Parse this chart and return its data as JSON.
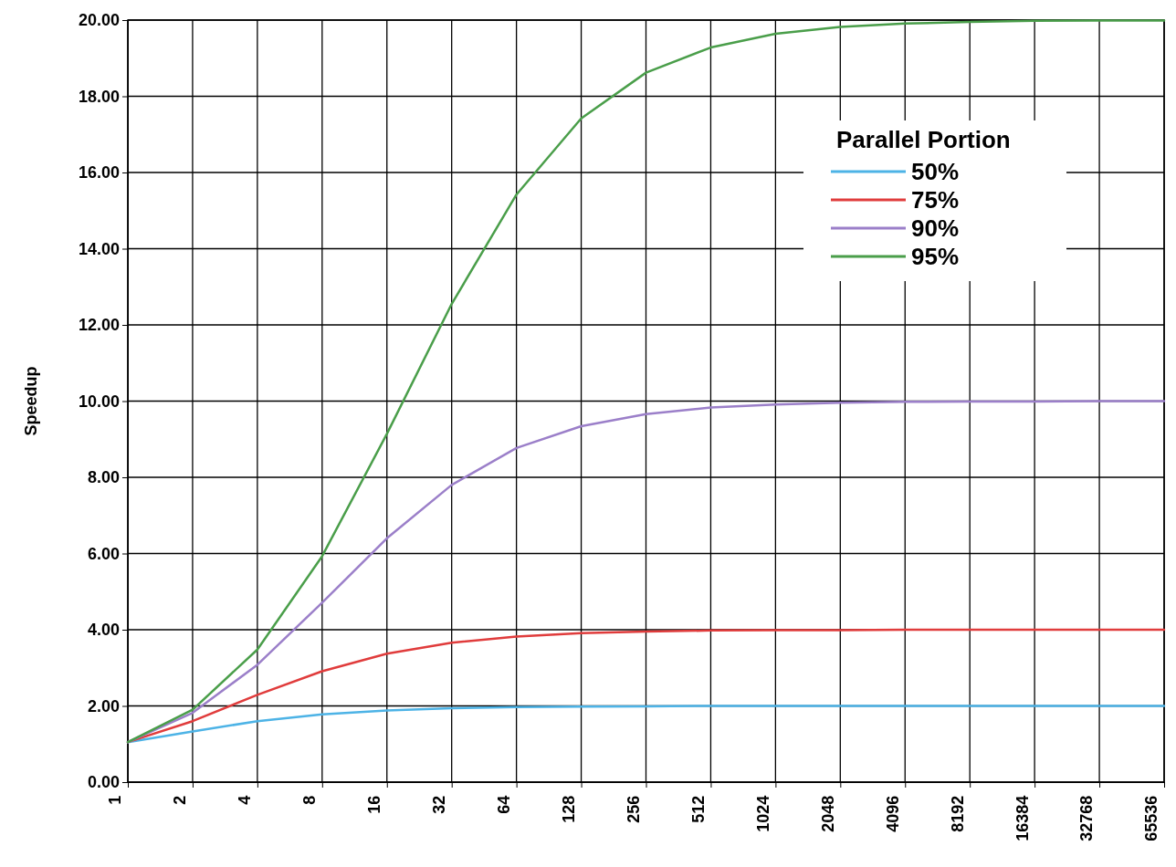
{
  "chart_data": {
    "type": "line",
    "ylabel": "Speedup",
    "legend_title": "Parallel Portion",
    "legend": "top right",
    "grid": true,
    "marker": "none",
    "line_style": "solid",
    "categories": [
      "1",
      "2",
      "4",
      "8",
      "16",
      "32",
      "64",
      "128",
      "256",
      "512",
      "1024",
      "2048",
      "4096",
      "8192",
      "16384",
      "32768",
      "65536"
    ],
    "ylim": [
      0,
      20
    ],
    "yticks": [
      {
        "value": 0,
        "label": "0.00"
      },
      {
        "value": 2,
        "label": "2.00"
      },
      {
        "value": 4,
        "label": "4.00"
      },
      {
        "value": 6,
        "label": "6.00"
      },
      {
        "value": 8,
        "label": "8.00"
      },
      {
        "value": 10,
        "label": "10.00"
      },
      {
        "value": 12,
        "label": "12.00"
      },
      {
        "value": 14,
        "label": "14.00"
      },
      {
        "value": 16,
        "label": "16.00"
      },
      {
        "value": 18,
        "label": "18.00"
      },
      {
        "value": 20,
        "label": "20.00"
      }
    ],
    "series": [
      {
        "name": "50%",
        "color": "#4db3e6",
        "values": [
          1.05,
          1.33,
          1.6,
          1.78,
          1.88,
          1.94,
          1.97,
          1.98,
          1.99,
          2,
          2,
          2,
          2,
          2,
          2,
          2,
          2
        ]
      },
      {
        "name": "75%",
        "color": "#e03c3c",
        "values": [
          1.05,
          1.6,
          2.29,
          2.91,
          3.37,
          3.66,
          3.82,
          3.91,
          3.95,
          3.98,
          3.99,
          3.99,
          4,
          4,
          4,
          4,
          4
        ]
      },
      {
        "name": "90%",
        "color": "#9b7fc9",
        "values": [
          1.05,
          1.82,
          3.08,
          4.71,
          6.4,
          7.8,
          8.77,
          9.34,
          9.66,
          9.83,
          9.91,
          9.96,
          9.98,
          9.99,
          9.99,
          10,
          10
        ]
      },
      {
        "name": "95%",
        "color": "#4a9e4a",
        "values": [
          1.05,
          1.9,
          3.48,
          5.93,
          9.14,
          12.55,
          15.42,
          17.42,
          18.62,
          19.28,
          19.64,
          19.82,
          19.91,
          19.95,
          19.98,
          19.99,
          19.99
        ]
      }
    ]
  }
}
